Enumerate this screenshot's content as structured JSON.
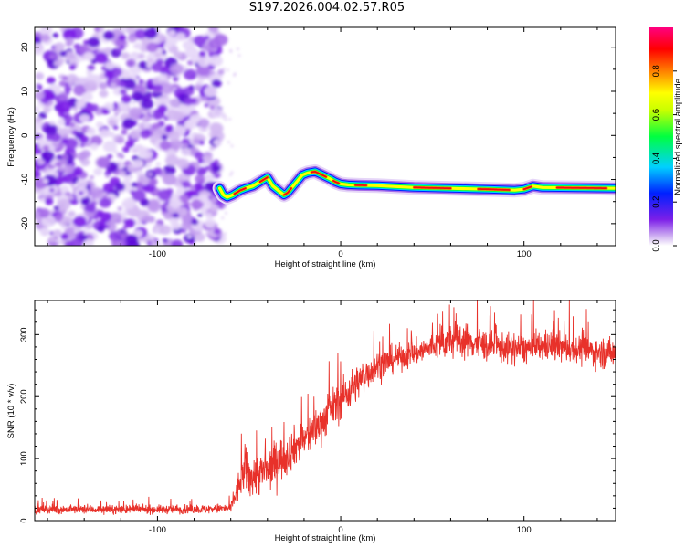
{
  "title": "S197.2026.004.02.57.R05",
  "chart_data": [
    {
      "type": "heatmap",
      "name": "spectrogram",
      "xlabel": "Height of straight line (km)",
      "ylabel": "Frequency (Hz)",
      "xlim": [
        -167,
        150
      ],
      "ylim": [
        -25,
        24.5
      ],
      "xticks": [
        -100,
        0,
        100
      ],
      "yticks": [
        -20,
        -10,
        0,
        10,
        20
      ],
      "noise_region_x": [
        -167,
        -65
      ],
      "signal_trace": {
        "x": [
          -66,
          -64,
          -62,
          -59,
          -55,
          -52,
          -48,
          -44,
          -40,
          -37,
          -34,
          -31,
          -29,
          -27,
          -24,
          -21,
          -18,
          -14,
          -10,
          -6,
          -3,
          0,
          4,
          10,
          20,
          40,
          60,
          80,
          95,
          100,
          105,
          110,
          130,
          150
        ],
        "y": [
          -12,
          -13.5,
          -14,
          -13.5,
          -12.5,
          -12,
          -11.5,
          -10.5,
          -9.5,
          -11.5,
          -12.5,
          -13.5,
          -13,
          -12,
          -10.5,
          -9,
          -8.5,
          -8.2,
          -9,
          -9.8,
          -10.5,
          -11,
          -11.2,
          -11.3,
          -11.4,
          -11.8,
          -12,
          -12.2,
          -12.4,
          -12.2,
          -11.5,
          -11.8,
          -11.9,
          -12
        ]
      },
      "colorbar": {
        "label": "Normalized spectral amplitude",
        "ticks": [
          0.0,
          0.2,
          0.4,
          0.6,
          0.8
        ],
        "tick_labels": [
          "0.0",
          "0.2",
          "0.4",
          "0.6",
          "0.8"
        ],
        "range": [
          0,
          1
        ],
        "colors": [
          "#ffffff",
          "#d3b8f2",
          "#7c1fe8",
          "#0020ff",
          "#00d0ff",
          "#00ff40",
          "#c8ff00",
          "#ffff00",
          "#ff8000",
          "#ff0000",
          "#ff0080"
        ]
      }
    },
    {
      "type": "line",
      "name": "snr",
      "xlabel": "Height of straight line (km)",
      "ylabel": "SNR (10 * v/v)",
      "xlim": [
        -167,
        150
      ],
      "ylim": [
        0,
        355
      ],
      "xticks": [
        -100,
        0,
        100
      ],
      "yticks": [
        0,
        100,
        200,
        300
      ],
      "color": "#e8312a",
      "series": [
        {
          "name": "SNR",
          "x": [
            -167,
            -140,
            -110,
            -80,
            -60,
            -55,
            -52,
            -50,
            -45,
            -40,
            -35,
            -30,
            -25,
            -20,
            -15,
            -10,
            -5,
            0,
            5,
            10,
            15,
            20,
            25,
            30,
            35,
            40,
            45,
            50,
            55,
            60,
            65,
            70,
            75,
            80,
            85,
            90,
            95,
            100,
            105,
            110,
            115,
            120,
            125,
            130,
            135,
            140,
            145,
            150
          ],
          "mean": [
            18,
            18,
            18,
            18,
            20,
            60,
            85,
            70,
            75,
            80,
            95,
            105,
            120,
            130,
            145,
            160,
            180,
            195,
            210,
            225,
            240,
            250,
            255,
            262,
            265,
            270,
            275,
            280,
            285,
            290,
            292,
            290,
            285,
            282,
            280,
            278,
            276,
            277,
            278,
            280,
            282,
            280,
            278,
            276,
            274,
            272,
            270,
            270
          ],
          "spread": [
            10,
            10,
            10,
            10,
            12,
            40,
            55,
            50,
            50,
            50,
            50,
            50,
            45,
            45,
            45,
            45,
            45,
            45,
            45,
            40,
            40,
            35,
            35,
            30,
            30,
            30,
            30,
            30,
            35,
            40,
            40,
            40,
            40,
            35,
            35,
            35,
            35,
            35,
            35,
            35,
            35,
            35,
            35,
            35,
            35,
            35,
            35,
            35
          ]
        }
      ]
    }
  ]
}
